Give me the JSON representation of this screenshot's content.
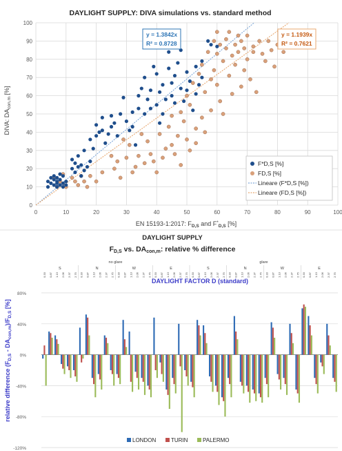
{
  "colors": {
    "scatter_blue": "#1f4e8c",
    "scatter_orange": "#d9a07a",
    "fit_blue": "#7da7d9",
    "fit_orange": "#e8a870",
    "london": "#2e6bb5",
    "turin": "#c0504d",
    "palermo": "#9bbb59",
    "eq_blue_text": "#2e75b6",
    "eq_orange_text": "#c55a11",
    "factor_title": "#3c3cc8",
    "grid": "#d9d9d9"
  },
  "chart_data": [
    {
      "type": "scatter",
      "title": "DAYLIGHT SUPPLY: DIVA simulations vs. standard method",
      "xlabel_main": "EN 15193-1:2017: F",
      "xlabel_sub1": "D,S",
      "xlabel_mid": " and F",
      "xlabel_sup": "*",
      "xlabel_sub2": "D,S",
      "xlabel_unit": "  [%]",
      "ylabel_main": "DIVA: DA",
      "ylabel_sub": "con,m",
      "ylabel_unit": " [%]",
      "xlim": [
        0,
        100
      ],
      "ylim": [
        0,
        100
      ],
      "xticks": [
        "0",
        "10",
        "20",
        "30",
        "40",
        "50",
        "60",
        "70",
        "80",
        "90",
        "100"
      ],
      "yticks": [
        "0",
        "10",
        "20",
        "30",
        "40",
        "50",
        "60",
        "70",
        "80",
        "90",
        "100"
      ],
      "grid": true,
      "legend_position": "bottom-right",
      "legend": [
        "F*D,S [%]",
        "FD,S [%]",
        "Lineare (F*D,S [%])",
        "Lineare (FD,S [%])"
      ],
      "equations": [
        {
          "eq": "y = 1.3842x",
          "r2": "R² = 0.8728",
          "slope": 1.3842,
          "series": "F*D,S [%]"
        },
        {
          "eq": "y = 1.1939x",
          "r2": "R² = 0.7621",
          "slope": 1.1939,
          "series": "FD,S [%]"
        }
      ],
      "series": [
        {
          "name": "F*D,S [%]",
          "points": [
            [
              4,
              10
            ],
            [
              4,
              13
            ],
            [
              5,
              15
            ],
            [
              5,
              12
            ],
            [
              6,
              11
            ],
            [
              6,
              14
            ],
            [
              6,
              16
            ],
            [
              7,
              10
            ],
            [
              7,
              12
            ],
            [
              7,
              13
            ],
            [
              7,
              15
            ],
            [
              8,
              11
            ],
            [
              8,
              14
            ],
            [
              8,
              17
            ],
            [
              9,
              12
            ],
            [
              9,
              10
            ],
            [
              9,
              16
            ],
            [
              10,
              13
            ],
            [
              10,
              11
            ],
            [
              12,
              20
            ],
            [
              12,
              25
            ],
            [
              13,
              23
            ],
            [
              13,
              18
            ],
            [
              14,
              27
            ],
            [
              14,
              21
            ],
            [
              15,
              16
            ],
            [
              15,
              22
            ],
            [
              16,
              19
            ],
            [
              16,
              30
            ],
            [
              17,
              21
            ],
            [
              18,
              24
            ],
            [
              18,
              36
            ],
            [
              19,
              31
            ],
            [
              20,
              38
            ],
            [
              20,
              44
            ],
            [
              21,
              40
            ],
            [
              22,
              41
            ],
            [
              22,
              48
            ],
            [
              23,
              34
            ],
            [
              24,
              39
            ],
            [
              25,
              43
            ],
            [
              25,
              49
            ],
            [
              26,
              45
            ],
            [
              27,
              38
            ],
            [
              28,
              50
            ],
            [
              29,
              59
            ],
            [
              30,
              46
            ],
            [
              31,
              41
            ],
            [
              32,
              51
            ],
            [
              32,
              43
            ],
            [
              33,
              33
            ],
            [
              34,
              60
            ],
            [
              34,
              53
            ],
            [
              35,
              64
            ],
            [
              36,
              50
            ],
            [
              36,
              70
            ],
            [
              37,
              58
            ],
            [
              38,
              53
            ],
            [
              38,
              63
            ],
            [
              39,
              76
            ],
            [
              40,
              72
            ],
            [
              40,
              55
            ],
            [
              41,
              45
            ],
            [
              41,
              62
            ],
            [
              42,
              66
            ],
            [
              42,
              50
            ],
            [
              43,
              58
            ],
            [
              44,
              75
            ],
            [
              44,
              84
            ],
            [
              45,
              60
            ],
            [
              45,
              67
            ],
            [
              46,
              56
            ],
            [
              46,
              71
            ],
            [
              47,
              78
            ],
            [
              48,
              64
            ],
            [
              48,
              85
            ],
            [
              49,
              57
            ],
            [
              50,
              63
            ],
            [
              50,
              73
            ],
            [
              51,
              68
            ],
            [
              52,
              52
            ],
            [
              53,
              61
            ],
            [
              53,
              76
            ],
            [
              54,
              66
            ],
            [
              55,
              79
            ],
            [
              55,
              70
            ],
            [
              57,
              90
            ],
            [
              58,
              88
            ],
            [
              60,
              87
            ]
          ]
        },
        {
          "name": "FD,S [%]",
          "points": [
            [
              6,
              15
            ],
            [
              7,
              10
            ],
            [
              8,
              13
            ],
            [
              9,
              17
            ],
            [
              10,
              10
            ],
            [
              12,
              15
            ],
            [
              13,
              13
            ],
            [
              14,
              11
            ],
            [
              15,
              16
            ],
            [
              16,
              13
            ],
            [
              17,
              10
            ],
            [
              18,
              16
            ],
            [
              20,
              13
            ],
            [
              22,
              18
            ],
            [
              25,
              27
            ],
            [
              26,
              20
            ],
            [
              27,
              24
            ],
            [
              28,
              15
            ],
            [
              29,
              36
            ],
            [
              30,
              26
            ],
            [
              31,
              33
            ],
            [
              32,
              18
            ],
            [
              33,
              21
            ],
            [
              34,
              27
            ],
            [
              35,
              39
            ],
            [
              36,
              23
            ],
            [
              37,
              35
            ],
            [
              38,
              28
            ],
            [
              39,
              24
            ],
            [
              40,
              18
            ],
            [
              41,
              39
            ],
            [
              42,
              26
            ],
            [
              43,
              31
            ],
            [
              44,
              43
            ],
            [
              45,
              49
            ],
            [
              45,
              33
            ],
            [
              46,
              28
            ],
            [
              47,
              38
            ],
            [
              48,
              51
            ],
            [
              48,
              22
            ],
            [
              49,
              46
            ],
            [
              50,
              60
            ],
            [
              50,
              36
            ],
            [
              51,
              55
            ],
            [
              51,
              30
            ],
            [
              52,
              67
            ],
            [
              53,
              42
            ],
            [
              53,
              34
            ],
            [
              54,
              72
            ],
            [
              55,
              77
            ],
            [
              55,
              48
            ],
            [
              56,
              62
            ],
            [
              56,
              40
            ],
            [
              57,
              84
            ],
            [
              58,
              69
            ],
            [
              58,
              52
            ],
            [
              59,
              90
            ],
            [
              59,
              74
            ],
            [
              60,
              66
            ],
            [
              60,
              83
            ],
            [
              60,
              95
            ],
            [
              61,
              57
            ],
            [
              61,
              88
            ],
            [
              62,
              79
            ],
            [
              62,
              50
            ],
            [
              63,
              86
            ],
            [
              63,
              91
            ],
            [
              64,
              95
            ],
            [
              64,
              71
            ],
            [
              65,
              61
            ],
            [
              65,
              82
            ],
            [
              66,
              88
            ],
            [
              66,
              77
            ],
            [
              67,
              93
            ],
            [
              67,
              84
            ],
            [
              68,
              65
            ],
            [
              68,
              90
            ],
            [
              69,
              74
            ],
            [
              69,
              86
            ],
            [
              70,
              80
            ],
            [
              70,
              93
            ],
            [
              71,
              69
            ],
            [
              72,
              87
            ],
            [
              72,
              84
            ],
            [
              73,
              62
            ],
            [
              74,
              90
            ],
            [
              75,
              83
            ],
            [
              76,
              79
            ],
            [
              77,
              90
            ],
            [
              78,
              85
            ],
            [
              79,
              76
            ],
            [
              80,
              88
            ],
            [
              81,
              90
            ],
            [
              82,
              84
            ],
            [
              83,
              95
            ]
          ]
        }
      ]
    },
    {
      "type": "bar",
      "title": "DAYLIGHT SUPPLY",
      "subtitle_f": "F",
      "subtitle_f_sub": "D,S",
      "subtitle_vs": " vs. DA",
      "subtitle_da_sub": "con,m",
      "subtitle_rest": ": relative % difference",
      "group_labels": [
        "no glare",
        "glare"
      ],
      "orientation_labels": [
        "S",
        "N",
        "W",
        "E",
        "S",
        "N",
        "W",
        "E"
      ],
      "factor_values": [
        "0.33",
        "0.87",
        "1.13",
        "2.06",
        "2.37",
        "2.75",
        "0.33",
        "0.87",
        "1.13",
        "2.06",
        "2.37",
        "2.75",
        "0.33",
        "0.87",
        "1.13",
        "2.06",
        "2.37",
        "2.75",
        "0.33",
        "0.87",
        "1.13",
        "2.06",
        "2.37",
        "2.75",
        "0.33",
        "0.87",
        "1.13",
        "2.06",
        "2.37",
        "2.75",
        "0.33",
        "0.87",
        "1.13",
        "2.06",
        "2.37",
        "2.75",
        "0.33",
        "0.87",
        "1.13",
        "2.06",
        "2.37",
        "2.75",
        "0.33",
        "0.87",
        "1.13",
        "2.06",
        "2.37",
        "2.75"
      ],
      "factor_title": "DAYLIGHT FACTOR D (standard)",
      "ylabel_pre": "relative difference (F",
      "ylabel_sub1": "D,S",
      "ylabel_mid": " - DA",
      "ylabel_sub2": "con,m",
      "ylabel_post": ")/F",
      "ylabel_sub3": "D,S",
      "ylabel_unit": " [%]",
      "ylim": [
        -120,
        80
      ],
      "yticks": [
        "80%",
        "40%",
        "0%",
        "-40%",
        "-80%",
        "-120%"
      ],
      "legend_position": "bottom",
      "series": [
        {
          "name": "LONDON",
          "values": [
            -5,
            30,
            25,
            -12,
            -15,
            -20,
            35,
            52,
            -30,
            -25,
            25,
            -20,
            -25,
            45,
            30,
            -22,
            -30,
            -40,
            48,
            -10,
            -45,
            -30,
            40,
            -20,
            -35,
            45,
            38,
            -28,
            -40,
            -55,
            -30,
            50,
            -35,
            -40,
            -45,
            -50,
            -30,
            42,
            -25,
            -30,
            40,
            -45,
            60,
            50,
            -30,
            -10,
            40,
            -30
          ]
        },
        {
          "name": "TURIN",
          "values": [
            12,
            28,
            20,
            -18,
            -20,
            -28,
            -10,
            48,
            -38,
            -32,
            22,
            -25,
            -30,
            20,
            -35,
            -30,
            -35,
            -45,
            -20,
            -25,
            -52,
            -38,
            -15,
            -28,
            -42,
            38,
            28,
            -35,
            -48,
            -60,
            -38,
            30,
            -40,
            -48,
            -50,
            -55,
            -38,
            35,
            -32,
            -38,
            28,
            -50,
            65,
            38,
            -38,
            -15,
            25,
            -35
          ]
        },
        {
          "name": "PALERMO",
          "values": [
            -40,
            22,
            14,
            -25,
            -30,
            -35,
            -5,
            25,
            -55,
            -45,
            15,
            -40,
            -38,
            10,
            -48,
            -45,
            -52,
            -55,
            -30,
            -35,
            -70,
            -50,
            -100,
            -40,
            -55,
            25,
            15,
            -48,
            -65,
            -80,
            -55,
            20,
            -50,
            -62,
            -60,
            -62,
            -55,
            22,
            -45,
            -52,
            15,
            -62,
            62,
            25,
            -50,
            -25,
            12,
            -48
          ]
        }
      ]
    }
  ]
}
